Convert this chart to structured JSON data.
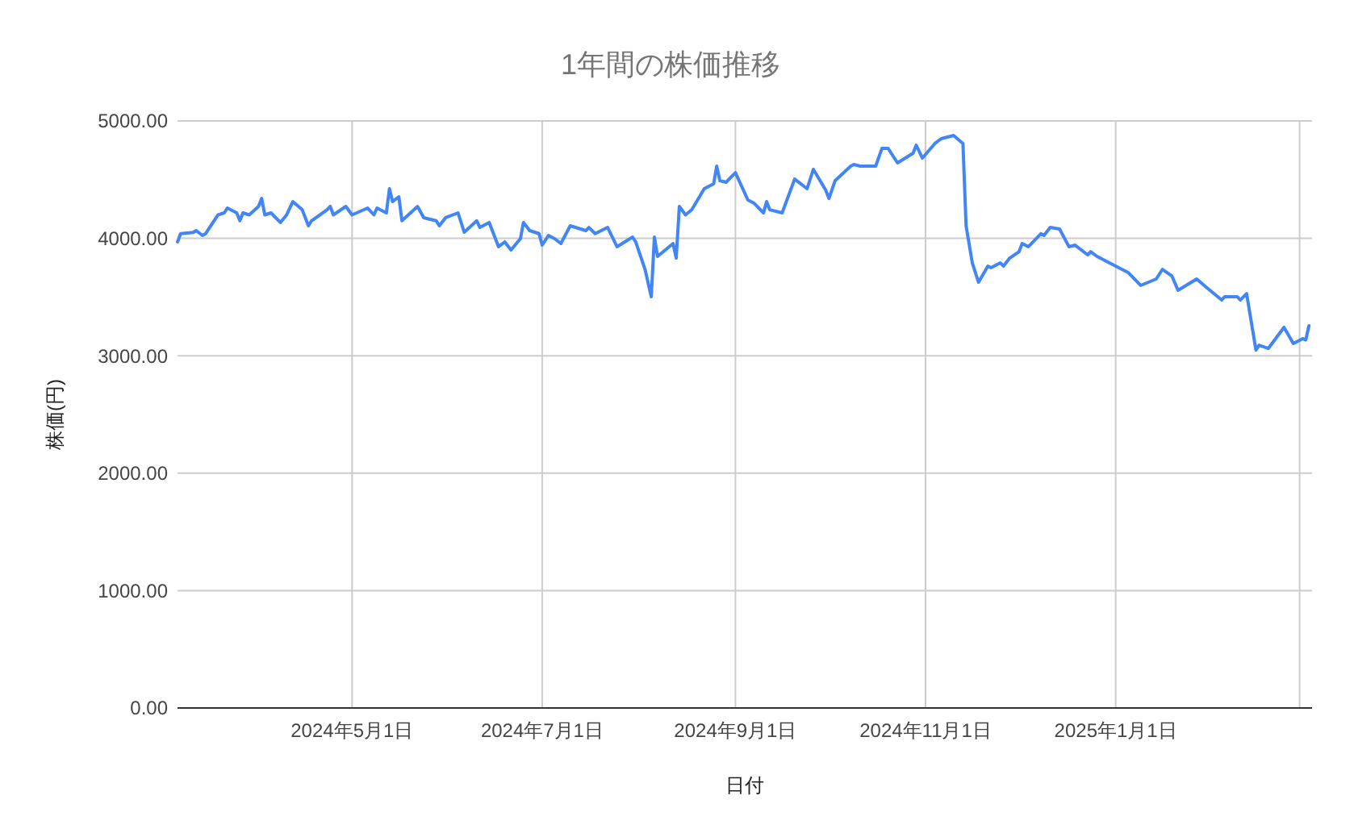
{
  "chart_data": {
    "type": "line",
    "title": "1年間の株価推移",
    "xlabel": "日付",
    "ylabel": "株価(円)",
    "xlim": [
      "2024-03-06",
      "2025-03-05"
    ],
    "xticks": [
      {
        "value": "2024-05-01",
        "label": "2024年5月1日"
      },
      {
        "value": "2024-07-01",
        "label": "2024年7月1日"
      },
      {
        "value": "2024-09-01",
        "label": "2024年9月1日"
      },
      {
        "value": "2024-11-01",
        "label": "2024年11月1日"
      },
      {
        "value": "2025-01-01",
        "label": "2025年1月1日"
      },
      {
        "value": "2025-03-01",
        "label": null
      }
    ],
    "ylim": [
      0,
      5000
    ],
    "yticks": [
      {
        "value": 0,
        "label": "0.00"
      },
      {
        "value": 1000,
        "label": "1000.00"
      },
      {
        "value": 2000,
        "label": "2000.00"
      },
      {
        "value": 3000,
        "label": "3000.00"
      },
      {
        "value": 4000,
        "label": "4000.00"
      },
      {
        "value": 5000,
        "label": "5000.00"
      }
    ],
    "grid": true,
    "marker": "none",
    "line_style": "solid",
    "series": [
      {
        "color": "#4285f4",
        "x": [
          "2024-03-06",
          "2024-03-07",
          "2024-03-11",
          "2024-03-12",
          "2024-03-14",
          "2024-03-15",
          "2024-03-19",
          "2024-03-21",
          "2024-03-22",
          "2024-03-25",
          "2024-03-26",
          "2024-03-27",
          "2024-03-29",
          "2024-04-01",
          "2024-04-02",
          "2024-04-03",
          "2024-04-05",
          "2024-04-08",
          "2024-04-10",
          "2024-04-12",
          "2024-04-15",
          "2024-04-17",
          "2024-04-18",
          "2024-04-23",
          "2024-04-24",
          "2024-04-25",
          "2024-04-29",
          "2024-05-01",
          "2024-05-06",
          "2024-05-08",
          "2024-05-09",
          "2024-05-12",
          "2024-05-13",
          "2024-05-14",
          "2024-05-16",
          "2024-05-17",
          "2024-05-22",
          "2024-05-24",
          "2024-05-28",
          "2024-05-29",
          "2024-05-31",
          "2024-06-04",
          "2024-06-06",
          "2024-06-10",
          "2024-06-11",
          "2024-06-14",
          "2024-06-17",
          "2024-06-19",
          "2024-06-21",
          "2024-06-24",
          "2024-06-25",
          "2024-06-27",
          "2024-06-30",
          "2024-07-01",
          "2024-07-03",
          "2024-07-05",
          "2024-07-07",
          "2024-07-10",
          "2024-07-15",
          "2024-07-16",
          "2024-07-18",
          "2024-07-22",
          "2024-07-25",
          "2024-07-30",
          "2024-07-31",
          "2024-08-03",
          "2024-08-05",
          "2024-08-06",
          "2024-08-07",
          "2024-08-12",
          "2024-08-13",
          "2024-08-14",
          "2024-08-16",
          "2024-08-18",
          "2024-08-22",
          "2024-08-25",
          "2024-08-26",
          "2024-08-27",
          "2024-08-29",
          "2024-09-01",
          "2024-09-05",
          "2024-09-07",
          "2024-09-10",
          "2024-09-11",
          "2024-09-12",
          "2024-09-16",
          "2024-09-20",
          "2024-09-24",
          "2024-09-26",
          "2024-09-30",
          "2024-10-01",
          "2024-10-03",
          "2024-10-08",
          "2024-10-09",
          "2024-10-11",
          "2024-10-16",
          "2024-10-18",
          "2024-10-20",
          "2024-10-23",
          "2024-10-28",
          "2024-10-29",
          "2024-10-31",
          "2024-11-04",
          "2024-11-06",
          "2024-11-10",
          "2024-11-13",
          "2024-11-14",
          "2024-11-16",
          "2024-11-18",
          "2024-11-21",
          "2024-11-22",
          "2024-11-25",
          "2024-11-26",
          "2024-11-28",
          "2024-12-01",
          "2024-12-02",
          "2024-12-04",
          "2024-12-08",
          "2024-12-09",
          "2024-12-11",
          "2024-12-14",
          "2024-12-17",
          "2024-12-19",
          "2024-12-23",
          "2024-12-24",
          "2024-12-26",
          "2025-01-05",
          "2025-01-09",
          "2025-01-14",
          "2025-01-16",
          "2025-01-19",
          "2025-01-21",
          "2025-01-27",
          "2025-01-30",
          "2025-02-04",
          "2025-02-05",
          "2025-02-09",
          "2025-02-10",
          "2025-02-12",
          "2025-02-15",
          "2025-02-16",
          "2025-02-19",
          "2025-02-24",
          "2025-02-27",
          "2025-03-02",
          "2025-03-03",
          "2025-03-04"
        ],
        "values": [
          3970,
          4040,
          4050,
          4066,
          4025,
          4040,
          4200,
          4217,
          4258,
          4217,
          4150,
          4217,
          4200,
          4272,
          4340,
          4200,
          4217,
          4135,
          4200,
          4313,
          4244,
          4107,
          4150,
          4244,
          4272,
          4200,
          4272,
          4200,
          4258,
          4200,
          4258,
          4217,
          4423,
          4313,
          4354,
          4150,
          4272,
          4176,
          4150,
          4107,
          4176,
          4217,
          4052,
          4150,
          4093,
          4135,
          3929,
          3970,
          3901,
          3997,
          4135,
          4066,
          4040,
          3942,
          4025,
          3997,
          3956,
          4107,
          4066,
          4093,
          4040,
          4093,
          3929,
          4011,
          3970,
          3736,
          3503,
          4011,
          3846,
          3956,
          3832,
          4272,
          4200,
          4244,
          4423,
          4464,
          4615,
          4492,
          4478,
          4560,
          4327,
          4299,
          4217,
          4313,
          4244,
          4217,
          4505,
          4423,
          4588,
          4409,
          4340,
          4492,
          4615,
          4629,
          4615,
          4615,
          4766,
          4766,
          4643,
          4725,
          4794,
          4684,
          4808,
          4849,
          4876,
          4808,
          4107,
          3791,
          3626,
          3764,
          3750,
          3791,
          3764,
          3832,
          3887,
          3956,
          3929,
          4040,
          4025,
          4093,
          4080,
          3929,
          3942,
          3860,
          3887,
          3846,
          3709,
          3599,
          3654,
          3736,
          3681,
          3558,
          3654,
          3585,
          3475,
          3503,
          3503,
          3475,
          3530,
          3049,
          3090,
          3063,
          3242,
          3104,
          3146,
          3135,
          3255
        ]
      }
    ]
  }
}
